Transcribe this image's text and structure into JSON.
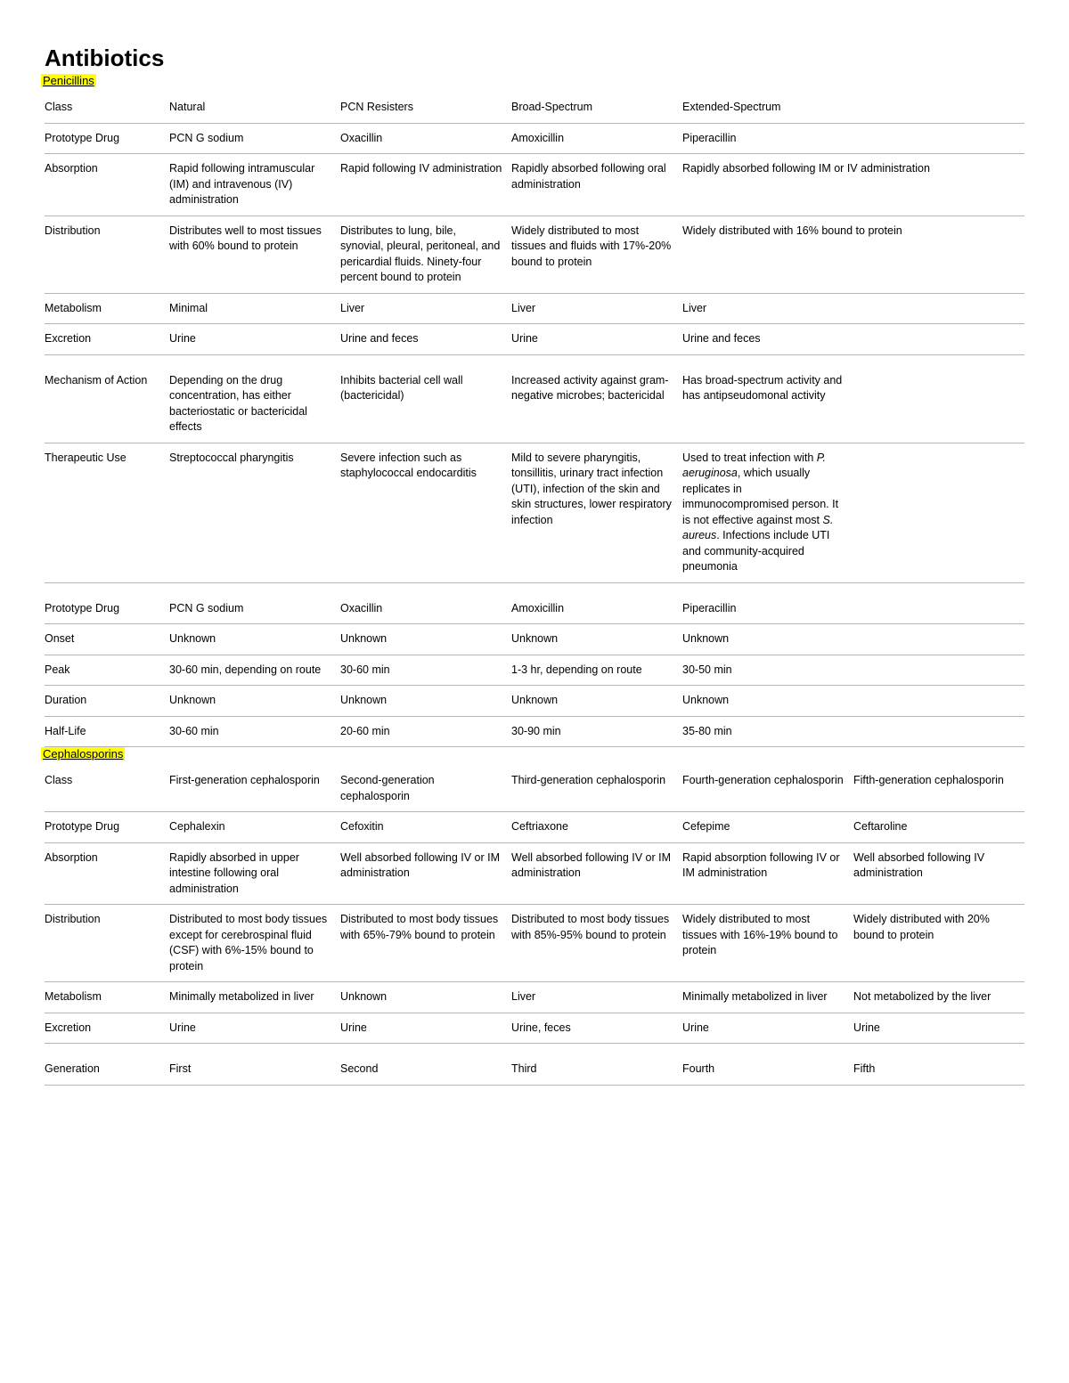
{
  "title": "Antibiotics",
  "sections": [
    {
      "label": "Penicillins",
      "col_count": 5,
      "rows": [
        {
          "label": "Class",
          "cells": [
            "Natural",
            "PCN Resisters",
            "Broad-Spectrum",
            "Extended-Spectrum"
          ],
          "colspans": [
            1,
            1,
            1,
            2
          ]
        },
        {
          "label": "Prototype Drug",
          "cells": [
            "PCN G sodium",
            "Oxacillin",
            "Amoxicillin",
            "Piperacillin"
          ]
        },
        {
          "label": "Absorption",
          "cells": [
            "Rapid following intramuscular (IM) and intravenous (IV) administration",
            "Rapid following IV administration",
            "Rapidly absorbed following oral administration",
            "Rapidly absorbed following IM or IV administration"
          ],
          "colspans": [
            1,
            1,
            1,
            2
          ]
        },
        {
          "label": "Distribution",
          "cells": [
            "Distributes well to most tissues with 60% bound to protein",
            "Distributes to lung, bile, synovial, pleural, peritoneal, and pericardial fluids. Ninety-four percent bound to protein",
            "Widely distributed to most tissues and fluids with 17%-20% bound to protein",
            "Widely distributed with 16% bound to protein"
          ],
          "colspans": [
            1,
            1,
            1,
            2
          ]
        },
        {
          "label": "Metabolism",
          "cells": [
            "Minimal",
            "Liver",
            "Liver",
            "Liver"
          ]
        },
        {
          "label": "Excretion",
          "cells": [
            "Urine",
            "Urine and feces",
            "Urine",
            "Urine and feces"
          ]
        },
        {
          "label": "Mechanism of Action",
          "cells": [
            "Depending on the drug concentration, has either bacteriostatic or bactericidal effects",
            "Inhibits bacterial cell wall (bactericidal)",
            "Increased activity against gram-negative microbes; bactericidal",
            "Has broad-spectrum activity and has antipseudomonal activity"
          ],
          "spacer": true
        },
        {
          "label": "Therapeutic Use",
          "cells": [
            "Streptococcal pharyngitis",
            "Severe infection such as staphylococcal endocarditis",
            "Mild to severe pharyngitis, tonsillitis, urinary tract infection (UTI), infection of the skin and skin structures, lower respiratory infection",
            "Used to treat infection with <em>P. aeruginosa</em>, which usually replicates in immunocompromised person. It is not effective against most <em>S. aureus</em>. Infections include UTI and community-acquired pneumonia"
          ],
          "html": true
        },
        {
          "label": "Prototype Drug",
          "cells": [
            "PCN G sodium",
            "Oxacillin",
            "Amoxicillin",
            "Piperacillin"
          ],
          "spacer": true
        },
        {
          "label": "Onset",
          "cells": [
            "Unknown",
            "Unknown",
            "Unknown",
            "Unknown"
          ]
        },
        {
          "label": "Peak",
          "cells": [
            "30-60 min, depending on route",
            "30-60 min",
            "1-3 hr, depending on route",
            "30-50 min"
          ]
        },
        {
          "label": "Duration",
          "cells": [
            "Unknown",
            "Unknown",
            "Unknown",
            "Unknown"
          ]
        },
        {
          "label": "Half-Life",
          "cells": [
            "30-60 min",
            "20-60 min",
            "30-90 min",
            "35-80 min"
          ]
        }
      ]
    },
    {
      "label": "Cephalosporins",
      "col_count": 6,
      "rows": [
        {
          "label": "Class",
          "cells": [
            "First-generation cephalosporin",
            "Second-generation cephalosporin",
            "Third-generation cephalosporin",
            "Fourth-generation cephalosporin",
            "Fifth-generation cephalosporin"
          ]
        },
        {
          "label": "Prototype Drug",
          "cells": [
            "Cephalexin",
            "Cefoxitin",
            "Ceftriaxone",
            "Cefepime",
            "Ceftaroline"
          ]
        },
        {
          "label": "Absorption",
          "cells": [
            "Rapidly absorbed in upper intestine following oral administration",
            "Well absorbed following IV or IM administration",
            "Well absorbed following IV or IM administration",
            "Rapid absorption following IV or IM administration",
            "Well absorbed following IV administration"
          ]
        },
        {
          "label": "Distribution",
          "cells": [
            "Distributed to most body tissues except for cerebrospinal fluid (CSF) with 6%-15% bound to protein",
            "Distributed to most body tissues with 65%-79% bound to protein",
            "Distributed to most body tissues with 85%-95% bound to protein",
            "Widely distributed to most tissues with 16%-19% bound to protein",
            "Widely distributed with 20% bound to protein"
          ]
        },
        {
          "label": "Metabolism",
          "cells": [
            "Minimally metabolized in liver",
            "Unknown",
            "Liver",
            "Minimally metabolized in liver",
            "Not metabolized by the liver"
          ]
        },
        {
          "label": "Excretion",
          "cells": [
            "Urine",
            "Urine",
            "Urine, feces",
            "Urine",
            "Urine"
          ]
        },
        {
          "label": "Generation",
          "cells": [
            "First",
            "Second",
            "Third",
            "Fourth",
            "Fifth"
          ],
          "spacer": true
        }
      ]
    }
  ],
  "colors": {
    "highlight": "#ffff00",
    "rule": "#b5b5b5",
    "text": "#000"
  }
}
